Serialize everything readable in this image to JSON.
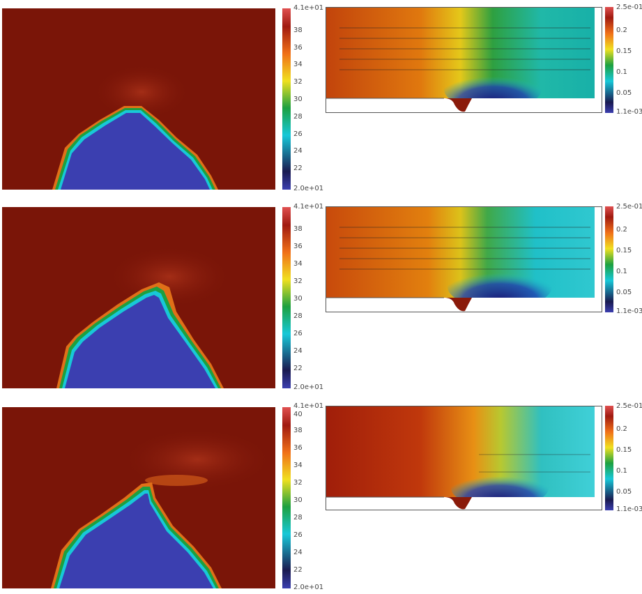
{
  "rows": [
    {
      "temperature": {
        "max_label": "4.1e+01",
        "min_label": "2.0e+01",
        "ticks": [
          "38",
          "36",
          "34",
          "32",
          "30",
          "28",
          "26",
          "24",
          "22"
        ],
        "extra_top": ""
      },
      "flow": {
        "max_label": "2.5e-01",
        "min_label": "1.1e-03",
        "ticks": [
          "0.2",
          "0.15",
          "0.1",
          "0.05"
        ]
      }
    },
    {
      "temperature": {
        "max_label": "4.1e+01",
        "min_label": "2.0e+01",
        "ticks": [
          "38",
          "36",
          "34",
          "32",
          "30",
          "28",
          "26",
          "24",
          "22"
        ],
        "extra_top": ""
      },
      "flow": {
        "max_label": "2.5e-01",
        "min_label": "1.1e-03",
        "ticks": [
          "0.2",
          "0.15",
          "0.1",
          "0.05"
        ]
      }
    },
    {
      "temperature": {
        "max_label": "4.1e+01",
        "min_label": "2.0e+01",
        "ticks": [
          "38",
          "36",
          "34",
          "32",
          "30",
          "28",
          "26",
          "24",
          "22"
        ],
        "extra_top": "40"
      },
      "flow": {
        "max_label": "2.5e-01",
        "min_label": "1.1e-03",
        "ticks": [
          "0.2",
          "0.15",
          "0.1",
          "0.05"
        ]
      }
    }
  ],
  "colors": {
    "hot": "#7a1508",
    "cold": "#3b3fb0",
    "field_mid": "#8c1e0c"
  }
}
